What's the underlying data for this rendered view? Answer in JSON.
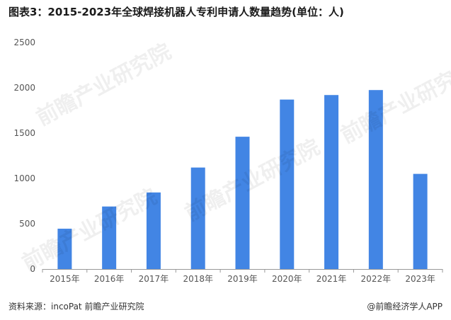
{
  "title": "图表3：2015-2023年全球焊接机器人专利申请人数量趋势(单位：人)",
  "source": "资料来源：incoPat 前瞻产业研究院",
  "brand": "@前瞻经济学人APP",
  "watermark": "前瞻产业研究院",
  "colors": {
    "bar": "#4285e4",
    "axis": "#999999",
    "tick_text": "#555555"
  },
  "chart_data": {
    "type": "bar",
    "title": "图表3：2015-2023年全球焊接机器人专利申请人数量趋势(单位：人)",
    "xlabel": "",
    "ylabel": "",
    "categories": [
      "2015年",
      "2016年",
      "2017年",
      "2018年",
      "2019年",
      "2020年",
      "2021年",
      "2022年",
      "2023年"
    ],
    "series": [
      {
        "values": [
          445,
          690,
          845,
          1120,
          1460,
          1870,
          1920,
          1975,
          1050
        ]
      }
    ],
    "ylim": [
      0,
      2500
    ],
    "yticks": [
      0,
      500,
      1000,
      1500,
      2000,
      2500
    ],
    "grid": false,
    "legend": "none"
  }
}
